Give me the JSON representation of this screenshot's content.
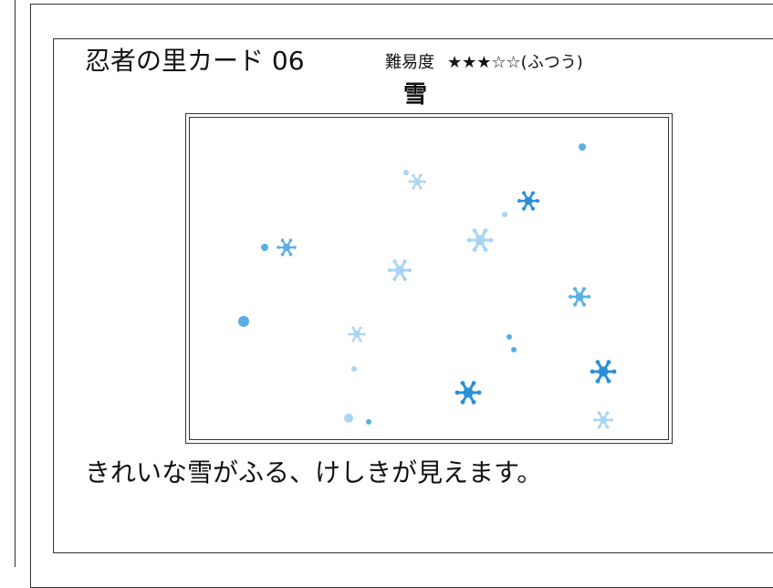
{
  "card": {
    "title": "忍者の里カード 06",
    "difficulty_label": "難易度",
    "difficulty_stars": "★★★☆☆(ふつう)",
    "word": "雪",
    "sentence": "きれいな雪がふる、けしきが見えます。"
  },
  "illustration": {
    "subject": "snowflakes-falling",
    "colors": {
      "dark": "#2a8fd8",
      "medium": "#5aaee6",
      "light": "#a9d4f3"
    }
  }
}
